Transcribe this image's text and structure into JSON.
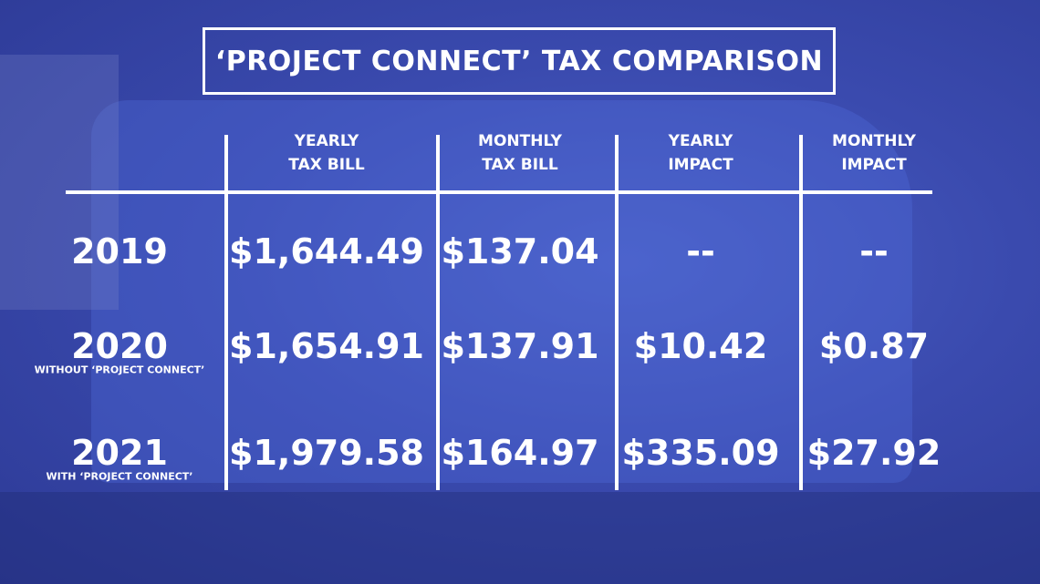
{
  "title": "‘PROJECT CONNECT’ TAX COMPARISON",
  "table": {
    "header": [
      [
        "YEARLY",
        "TAX BILL"
      ],
      [
        "MONTHLY",
        "TAX BILL"
      ],
      [
        "YEARLY",
        "IMPACT"
      ],
      [
        "MONTHLY",
        "IMPACT"
      ]
    ],
    "rows": [
      {
        "label": "2019",
        "cells": [
          "$1,644.49",
          "$137.04",
          "--",
          "--"
        ]
      },
      {
        "label": "2020",
        "note": "WITHOUT ‘PROJECT CONNECT’",
        "cells": [
          "$1,654.91",
          "$137.91",
          "$10.42",
          "$0.87"
        ]
      },
      {
        "label": "2021",
        "note": "WITH ‘PROJECT CONNECT’",
        "cells": [
          "$1,979.58",
          "$164.97",
          "$335.09",
          "$27.92"
        ]
      }
    ]
  }
}
